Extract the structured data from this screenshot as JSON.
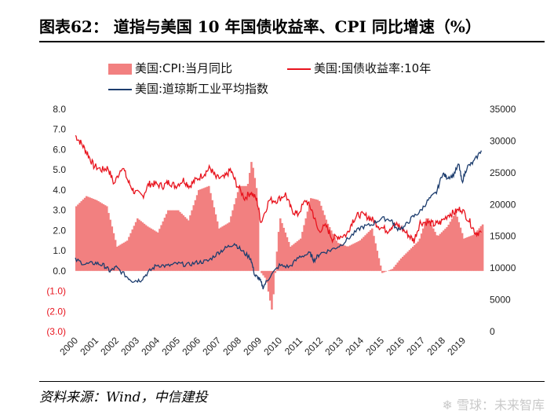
{
  "title": "图表62：  道指与美国 10 年国债收益率、CPI 同比增速（%）",
  "source": "资料来源：Wind，中信建投",
  "watermark": "❄ 雪球：未来智库",
  "colors": {
    "cpi": "#f28080",
    "yield": "#e8141e",
    "dow": "#1d3d6e",
    "neg_tick": "#e8141e"
  },
  "chart_data": {
    "type": "bar+line",
    "legend": [
      {
        "name": "美国:CPI:当月同比",
        "kind": "bar"
      },
      {
        "name": "美国:国债收益率:10年",
        "kind": "line"
      },
      {
        "name": "美国:道琼斯工业平均指数",
        "kind": "line"
      }
    ],
    "left_axis": {
      "ticks": [
        "8.0",
        "7.0",
        "6.0",
        "5.0",
        "4.0",
        "3.0",
        "2.0",
        "1.0",
        "0.0",
        "(1.0)",
        "(2.0)",
        "(3.0)"
      ],
      "values": [
        8,
        7,
        6,
        5,
        4,
        3,
        2,
        1,
        0,
        -1,
        -2,
        -3
      ],
      "min": -3,
      "max": 8
    },
    "right_axis": {
      "ticks": [
        "35000",
        "30000",
        "25000",
        "20000",
        "15000",
        "10000",
        "5000",
        "0"
      ],
      "values": [
        35000,
        30000,
        25000,
        20000,
        15000,
        10000,
        5000,
        0
      ],
      "min": 0,
      "max": 35000
    },
    "x_ticks": [
      "2000",
      "2001",
      "2002",
      "2003",
      "2004",
      "2005",
      "2006",
      "2007",
      "2008",
      "2009",
      "2010",
      "2011",
      "2012",
      "2013",
      "2014",
      "2015",
      "2016",
      "2017",
      "2018",
      "2019"
    ],
    "cpi_series": {
      "name": "美国:CPI:当月同比",
      "x": [
        2000.0,
        2000.5,
        2001.0,
        2001.5,
        2002.0,
        2002.5,
        2003.0,
        2003.5,
        2004.0,
        2004.5,
        2005.0,
        2005.5,
        2006.0,
        2006.5,
        2007.0,
        2007.5,
        2008.0,
        2008.4,
        2008.6,
        2008.9,
        2009.0,
        2009.3,
        2009.6,
        2009.9,
        2010.0,
        2010.5,
        2011.0,
        2011.5,
        2011.9,
        2012.3,
        2012.8,
        2013.3,
        2013.9,
        2014.5,
        2015.0,
        2015.5,
        2015.9,
        2016.3,
        2016.8,
        2017.2,
        2017.7,
        2018.2,
        2018.6,
        2019.0,
        2019.5,
        2019.9
      ],
      "values": [
        3.2,
        3.7,
        3.5,
        3.2,
        1.2,
        1.5,
        2.6,
        2.2,
        1.9,
        3.0,
        3.0,
        2.5,
        4.0,
        4.2,
        2.1,
        2.4,
        4.2,
        4.2,
        5.5,
        3.7,
        0.0,
        -0.4,
        -2.0,
        1.8,
        2.6,
        1.2,
        1.6,
        3.6,
        3.5,
        2.4,
        1.4,
        1.2,
        1.5,
        2.1,
        -0.1,
        0.1,
        0.6,
        1.0,
        1.5,
        2.7,
        1.7,
        2.2,
        2.9,
        1.6,
        1.8,
        2.3
      ]
    },
    "yield_series": {
      "name": "美国:国债收益率:10年",
      "x": [
        2000.0,
        2000.3,
        2000.6,
        2000.9,
        2001.3,
        2001.6,
        2001.9,
        2002.3,
        2002.6,
        2002.9,
        2003.3,
        2003.6,
        2003.9,
        2004.3,
        2004.6,
        2004.9,
        2005.3,
        2005.6,
        2005.9,
        2006.3,
        2006.6,
        2006.9,
        2007.3,
        2007.6,
        2007.9,
        2008.3,
        2008.6,
        2008.9,
        2009.1,
        2009.5,
        2009.9,
        2010.3,
        2010.6,
        2010.9,
        2011.3,
        2011.6,
        2011.9,
        2012.3,
        2012.6,
        2012.9,
        2013.3,
        2013.6,
        2013.9,
        2014.3,
        2014.6,
        2014.9,
        2015.3,
        2015.6,
        2015.9,
        2016.3,
        2016.6,
        2016.9,
        2017.3,
        2017.6,
        2017.9,
        2018.3,
        2018.6,
        2018.9,
        2019.3,
        2019.6,
        2019.9
      ],
      "values": [
        6.7,
        6.3,
        5.8,
        5.2,
        5.0,
        5.1,
        4.3,
        5.2,
        4.4,
        3.9,
        3.7,
        4.3,
        4.3,
        4.2,
        4.4,
        4.2,
        4.5,
        4.2,
        4.5,
        4.8,
        5.1,
        4.6,
        4.6,
        5.0,
        4.3,
        3.6,
        3.9,
        3.5,
        2.4,
        3.5,
        3.5,
        3.8,
        3.0,
        2.8,
        3.5,
        3.0,
        2.0,
        2.2,
        1.6,
        1.7,
        1.8,
        2.5,
        2.8,
        2.7,
        2.5,
        2.2,
        2.0,
        2.3,
        2.2,
        1.8,
        1.5,
        2.4,
        2.4,
        2.3,
        2.4,
        2.8,
        2.9,
        3.1,
        2.5,
        1.9,
        1.9
      ]
    },
    "dow_series": {
      "name": "美国:道琼斯工业平均指数",
      "x": [
        2000.0,
        2000.5,
        2001.0,
        2001.4,
        2001.7,
        2002.0,
        2002.5,
        2002.8,
        2003.2,
        2003.6,
        2004.0,
        2004.5,
        2005.0,
        2005.5,
        2006.0,
        2006.5,
        2007.0,
        2007.4,
        2007.8,
        2008.2,
        2008.6,
        2008.8,
        2009.0,
        2009.2,
        2009.5,
        2010.0,
        2010.5,
        2011.0,
        2011.5,
        2011.7,
        2012.0,
        2012.5,
        2013.0,
        2013.5,
        2014.0,
        2014.5,
        2015.0,
        2015.5,
        2015.7,
        2016.1,
        2016.5,
        2016.9,
        2017.3,
        2017.7,
        2018.0,
        2018.2,
        2018.5,
        2018.8,
        2018.95,
        2019.2,
        2019.5,
        2019.9
      ],
      "values": [
        11300,
        10600,
        10800,
        10400,
        9500,
        10100,
        8700,
        8000,
        8100,
        9400,
        10500,
        10300,
        10700,
        10500,
        10900,
        11100,
        12400,
        13200,
        13900,
        12600,
        11500,
        8800,
        8400,
        7000,
        8500,
        10400,
        10200,
        11800,
        12300,
        11200,
        12300,
        12800,
        13600,
        15000,
        16400,
        16800,
        17800,
        17600,
        16200,
        16400,
        17900,
        18900,
        20700,
        21900,
        24900,
        24300,
        24500,
        26300,
        23500,
        25900,
        26600,
        28500
      ]
    }
  }
}
